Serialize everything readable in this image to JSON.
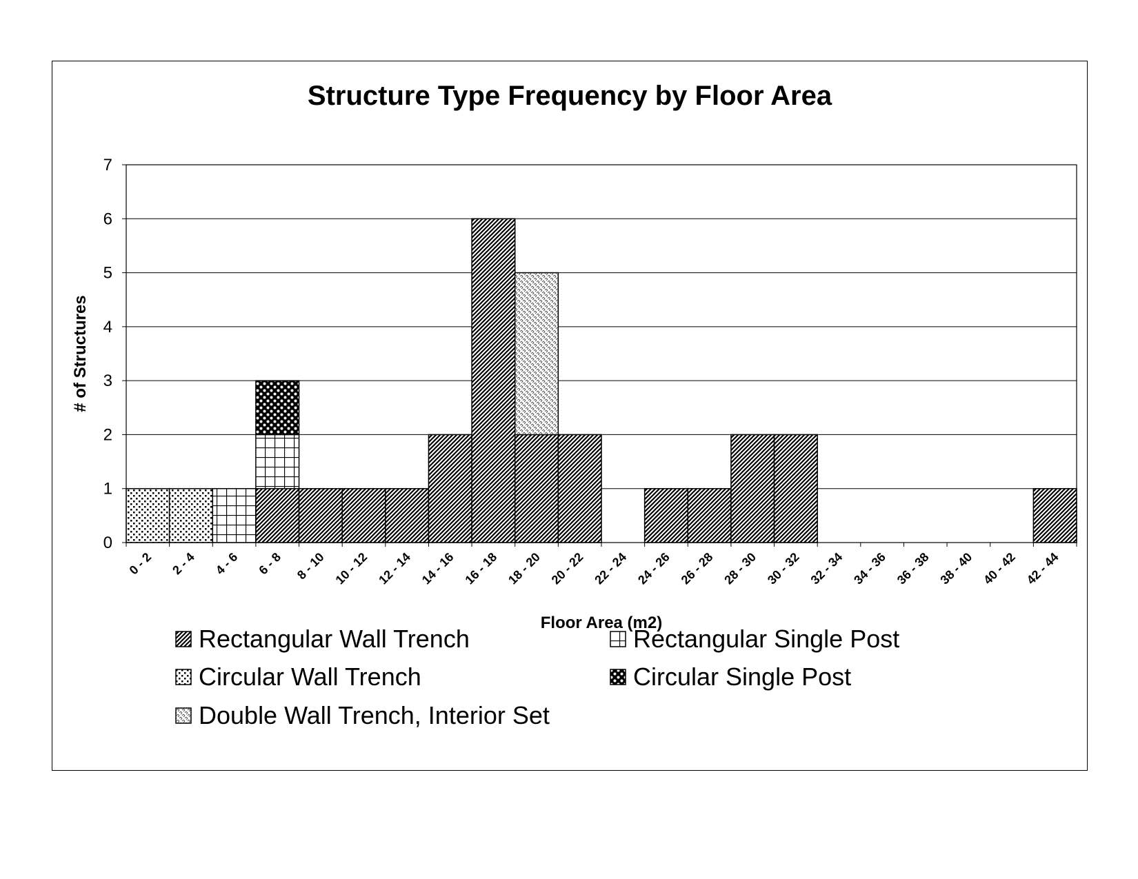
{
  "chart_data": {
    "type": "bar",
    "stacked": true,
    "title": "Structure Type Frequency by Floor Area",
    "xlabel": "Floor Area (m2)",
    "ylabel": "# of Structures",
    "ylim": [
      0,
      7
    ],
    "yticks": [
      "0",
      "1",
      "2",
      "3",
      "4",
      "5",
      "6",
      "7"
    ],
    "grid": true,
    "legend_position": "bottom",
    "categories": [
      "0 - 2",
      "2 - 4",
      "4 - 6",
      "6 - 8",
      "8 - 10",
      "10 - 12",
      "12 - 14",
      "14 - 16",
      "16 - 18",
      "18 - 20",
      "20 - 22",
      "22 - 24",
      "24 - 26",
      "26 - 28",
      "28 - 30",
      "30 - 32",
      "32 - 34",
      "34 - 36",
      "36 - 38",
      "38 - 40",
      "40 - 42",
      "42 - 44"
    ],
    "series": [
      {
        "name": "Rectangular Wall Trench",
        "pattern": "diagonal-hatch",
        "values": [
          0,
          0,
          0,
          1,
          1,
          1,
          1,
          2,
          6,
          2,
          2,
          0,
          1,
          1,
          2,
          2,
          0,
          0,
          0,
          0,
          0,
          1
        ]
      },
      {
        "name": "Rectangular Single Post",
        "pattern": "grid",
        "values": [
          0,
          0,
          1,
          1,
          0,
          0,
          0,
          0,
          0,
          0,
          0,
          0,
          0,
          0,
          0,
          0,
          0,
          0,
          0,
          0,
          0,
          0
        ]
      },
      {
        "name": "Circular Wall Trench",
        "pattern": "dots",
        "values": [
          1,
          1,
          0,
          0,
          0,
          0,
          0,
          0,
          0,
          0,
          0,
          0,
          0,
          0,
          0,
          0,
          0,
          0,
          0,
          0,
          0,
          0
        ]
      },
      {
        "name": "Circular Single Post",
        "pattern": "checker-dots",
        "values": [
          0,
          0,
          0,
          1,
          0,
          0,
          0,
          0,
          0,
          0,
          0,
          0,
          0,
          0,
          0,
          0,
          0,
          0,
          0,
          0,
          0,
          0
        ]
      },
      {
        "name": "Double Wall Trench, Interior Set",
        "pattern": "light-weave",
        "values": [
          0,
          0,
          0,
          0,
          0,
          0,
          0,
          0,
          0,
          3,
          0,
          0,
          0,
          0,
          0,
          0,
          0,
          0,
          0,
          0,
          0,
          0
        ]
      }
    ]
  }
}
